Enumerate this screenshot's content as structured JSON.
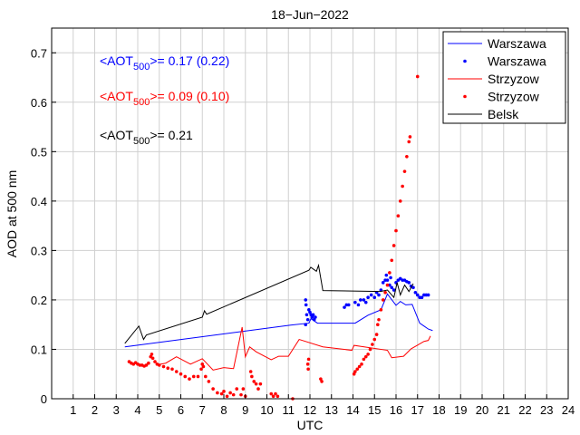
{
  "chart_data": {
    "type": "line",
    "title": "18−Jun−2022",
    "xlabel": "UTC",
    "ylabel": "AOD at 500 nm",
    "xlim": [
      0,
      24
    ],
    "ylim": [
      0,
      0.75
    ],
    "xticks": [
      "1",
      "2",
      "3",
      "4",
      "5",
      "6",
      "7",
      "8",
      "9",
      "10",
      "11",
      "12",
      "13",
      "14",
      "15",
      "16",
      "17",
      "18",
      "19",
      "20",
      "21",
      "22",
      "23",
      "24"
    ],
    "yticks": [
      "0",
      "0.1",
      "0.2",
      "0.3",
      "0.4",
      "0.5",
      "0.6",
      "0.7"
    ],
    "grid": true,
    "legend_position": "top-right",
    "annotations": [
      {
        "prefix": "<AOT",
        "sub": "500",
        "suffix": ">= 0.17 (0.22)",
        "color": "#0000ff"
      },
      {
        "prefix": "<AOT",
        "sub": "500",
        "suffix": ">= 0.09 (0.10)",
        "color": "#ff0000"
      },
      {
        "prefix": "<AOT",
        "sub": "500",
        "suffix": ">= 0.21",
        "color": "#000000"
      }
    ],
    "series": [
      {
        "name": "Warszawa",
        "style": "line",
        "color": "#0000ff",
        "points": [
          [
            3.4,
            0.105
          ],
          [
            11.1,
            0.149
          ],
          [
            11.95,
            0.153
          ],
          [
            12.05,
            0.162
          ],
          [
            12.35,
            0.153
          ],
          [
            14.1,
            0.153
          ],
          [
            14.7,
            0.169
          ],
          [
            15.3,
            0.18
          ],
          [
            15.6,
            0.212
          ],
          [
            16.0,
            0.189
          ],
          [
            16.2,
            0.197
          ],
          [
            16.45,
            0.19
          ],
          [
            16.75,
            0.191
          ],
          [
            17.1,
            0.153
          ],
          [
            17.3,
            0.147
          ],
          [
            17.5,
            0.141
          ],
          [
            17.7,
            0.138
          ]
        ]
      },
      {
        "name": "Warszawa",
        "style": "dots",
        "color": "#0000ff",
        "points": [
          [
            11.8,
            0.2
          ],
          [
            11.82,
            0.19
          ],
          [
            11.85,
            0.17
          ],
          [
            11.9,
            0.16
          ],
          [
            11.95,
            0.18
          ],
          [
            12.0,
            0.175
          ],
          [
            12.05,
            0.17
          ],
          [
            12.1,
            0.165
          ],
          [
            12.15,
            0.17
          ],
          [
            12.2,
            0.16
          ],
          [
            12.25,
            0.165
          ],
          [
            11.8,
            0.15
          ],
          [
            13.6,
            0.185
          ],
          [
            13.7,
            0.19
          ],
          [
            13.8,
            0.19
          ],
          [
            14.1,
            0.195
          ],
          [
            14.25,
            0.19
          ],
          [
            14.35,
            0.2
          ],
          [
            14.5,
            0.2
          ],
          [
            14.6,
            0.195
          ],
          [
            14.7,
            0.205
          ],
          [
            14.85,
            0.21
          ],
          [
            15.0,
            0.205
          ],
          [
            15.1,
            0.215
          ],
          [
            15.2,
            0.21
          ],
          [
            15.3,
            0.22
          ],
          [
            15.4,
            0.235
          ],
          [
            15.5,
            0.24
          ],
          [
            15.55,
            0.25
          ],
          [
            15.6,
            0.24
          ],
          [
            15.7,
            0.23
          ],
          [
            15.75,
            0.245
          ],
          [
            15.8,
            0.225
          ],
          [
            15.9,
            0.22
          ],
          [
            16.0,
            0.235
          ],
          [
            16.1,
            0.24
          ],
          [
            16.2,
            0.243
          ],
          [
            16.3,
            0.24
          ],
          [
            16.4,
            0.24
          ],
          [
            16.5,
            0.237
          ],
          [
            16.6,
            0.235
          ],
          [
            16.7,
            0.228
          ],
          [
            16.8,
            0.225
          ],
          [
            16.9,
            0.215
          ],
          [
            17.0,
            0.21
          ],
          [
            17.1,
            0.205
          ],
          [
            17.2,
            0.205
          ],
          [
            17.3,
            0.21
          ],
          [
            17.4,
            0.21
          ],
          [
            17.5,
            0.21
          ]
        ]
      },
      {
        "name": "Strzyzow",
        "style": "line",
        "color": "#ff0000",
        "points": [
          [
            5.05,
            0.07
          ],
          [
            5.3,
            0.072
          ],
          [
            5.8,
            0.085
          ],
          [
            6.45,
            0.07
          ],
          [
            7.0,
            0.081
          ],
          [
            7.5,
            0.058
          ],
          [
            8.0,
            0.063
          ],
          [
            8.45,
            0.061
          ],
          [
            8.85,
            0.145
          ],
          [
            9.0,
            0.085
          ],
          [
            9.2,
            0.105
          ],
          [
            9.5,
            0.095
          ],
          [
            10.2,
            0.079
          ],
          [
            10.55,
            0.086
          ],
          [
            11.0,
            0.086
          ],
          [
            11.5,
            0.12
          ],
          [
            12.6,
            0.105
          ],
          [
            13.95,
            0.098
          ],
          [
            14.05,
            0.108
          ],
          [
            15.6,
            0.098
          ],
          [
            15.8,
            0.083
          ],
          [
            16.35,
            0.086
          ],
          [
            16.7,
            0.101
          ],
          [
            17.3,
            0.116
          ],
          [
            17.5,
            0.118
          ],
          [
            17.6,
            0.127
          ]
        ]
      },
      {
        "name": "Strzyzow",
        "style": "dots",
        "color": "#ff0000",
        "points": [
          [
            3.6,
            0.075
          ],
          [
            3.7,
            0.072
          ],
          [
            3.8,
            0.07
          ],
          [
            3.9,
            0.073
          ],
          [
            4.0,
            0.07
          ],
          [
            4.1,
            0.068
          ],
          [
            4.2,
            0.068
          ],
          [
            4.3,
            0.066
          ],
          [
            4.4,
            0.068
          ],
          [
            4.5,
            0.072
          ],
          [
            4.6,
            0.085
          ],
          [
            4.65,
            0.09
          ],
          [
            4.7,
            0.082
          ],
          [
            4.8,
            0.075
          ],
          [
            4.9,
            0.07
          ],
          [
            5.0,
            0.068
          ],
          [
            5.2,
            0.065
          ],
          [
            5.4,
            0.062
          ],
          [
            5.6,
            0.06
          ],
          [
            5.8,
            0.055
          ],
          [
            6.0,
            0.05
          ],
          [
            6.2,
            0.045
          ],
          [
            6.4,
            0.04
          ],
          [
            6.6,
            0.045
          ],
          [
            6.8,
            0.045
          ],
          [
            6.95,
            0.06
          ],
          [
            7.0,
            0.07
          ],
          [
            7.05,
            0.065
          ],
          [
            7.15,
            0.045
          ],
          [
            7.3,
            0.035
          ],
          [
            7.5,
            0.02
          ],
          [
            7.7,
            0.012
          ],
          [
            7.9,
            0.01
          ],
          [
            8.0,
            0.015
          ],
          [
            8.15,
            0.005
          ],
          [
            8.3,
            0.012
          ],
          [
            8.45,
            0.008
          ],
          [
            8.6,
            0.02
          ],
          [
            8.8,
            0.008
          ],
          [
            8.9,
            0.02
          ],
          [
            9.0,
            0.005
          ],
          [
            9.25,
            0.055
          ],
          [
            9.3,
            0.045
          ],
          [
            9.4,
            0.035
          ],
          [
            9.5,
            0.03
          ],
          [
            9.6,
            0.02
          ],
          [
            9.7,
            0.03
          ],
          [
            10.2,
            0.01
          ],
          [
            10.3,
            0.005
          ],
          [
            10.4,
            0.01
          ],
          [
            10.5,
            0.005
          ],
          [
            11.2,
            0.0
          ],
          [
            11.9,
            0.07
          ],
          [
            11.92,
            0.06
          ],
          [
            11.94,
            0.08
          ],
          [
            12.5,
            0.04
          ],
          [
            12.55,
            0.035
          ],
          [
            14.05,
            0.05
          ],
          [
            14.1,
            0.055
          ],
          [
            14.2,
            0.06
          ],
          [
            14.3,
            0.065
          ],
          [
            14.4,
            0.07
          ],
          [
            14.5,
            0.08
          ],
          [
            14.6,
            0.085
          ],
          [
            14.7,
            0.09
          ],
          [
            14.8,
            0.1
          ],
          [
            14.9,
            0.11
          ],
          [
            15.0,
            0.12
          ],
          [
            15.1,
            0.13
          ],
          [
            15.15,
            0.15
          ],
          [
            15.2,
            0.16
          ],
          [
            15.3,
            0.18
          ],
          [
            15.4,
            0.2
          ],
          [
            15.5,
            0.215
          ],
          [
            15.6,
            0.23
          ],
          [
            15.7,
            0.255
          ],
          [
            15.8,
            0.28
          ],
          [
            15.9,
            0.31
          ],
          [
            16.0,
            0.34
          ],
          [
            16.1,
            0.37
          ],
          [
            16.2,
            0.4
          ],
          [
            16.3,
            0.43
          ],
          [
            16.4,
            0.46
          ],
          [
            16.5,
            0.49
          ],
          [
            16.6,
            0.52
          ],
          [
            16.65,
            0.53
          ],
          [
            17.0,
            0.652
          ]
        ]
      },
      {
        "name": "Belsk",
        "style": "line",
        "color": "#000000",
        "points": [
          [
            3.4,
            0.112
          ],
          [
            4.05,
            0.147
          ],
          [
            4.27,
            0.12
          ],
          [
            4.4,
            0.129
          ],
          [
            7.0,
            0.165
          ],
          [
            7.1,
            0.178
          ],
          [
            7.2,
            0.171
          ],
          [
            11.95,
            0.26
          ],
          [
            12.04,
            0.266
          ],
          [
            12.3,
            0.258
          ],
          [
            12.4,
            0.27
          ],
          [
            12.6,
            0.219
          ],
          [
            15.28,
            0.217
          ],
          [
            15.6,
            0.22
          ],
          [
            15.9,
            0.205
          ],
          [
            16.05,
            0.235
          ],
          [
            16.2,
            0.21
          ],
          [
            16.4,
            0.23
          ],
          [
            16.6,
            0.217
          ],
          [
            16.8,
            0.233
          ]
        ]
      }
    ]
  }
}
